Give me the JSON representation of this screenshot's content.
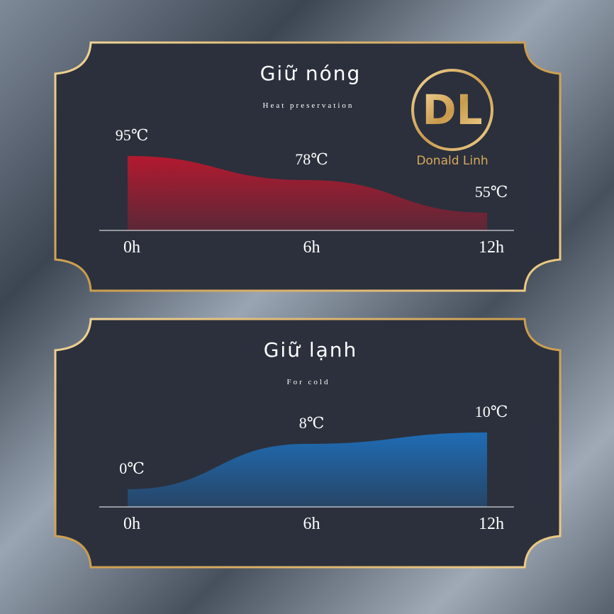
{
  "logo_mark": "DL",
  "brand": "Donald Linh",
  "chart_data": [
    {
      "type": "area",
      "title": "Giữ nóng",
      "subtitle": "Heat preservation",
      "categories": [
        "0h",
        "6h",
        "12h"
      ],
      "values": [
        95,
        78,
        55
      ],
      "value_labels": [
        "95℃",
        "78℃",
        "55℃"
      ],
      "color": "#b3192f"
    },
    {
      "type": "area",
      "title": "Giữ lạnh",
      "subtitle": "For cold",
      "categories": [
        "0h",
        "6h",
        "12h"
      ],
      "values": [
        0,
        8,
        10
      ],
      "value_labels": [
        "0℃",
        "8℃",
        "10℃"
      ],
      "color": "#1f6cb5"
    }
  ]
}
